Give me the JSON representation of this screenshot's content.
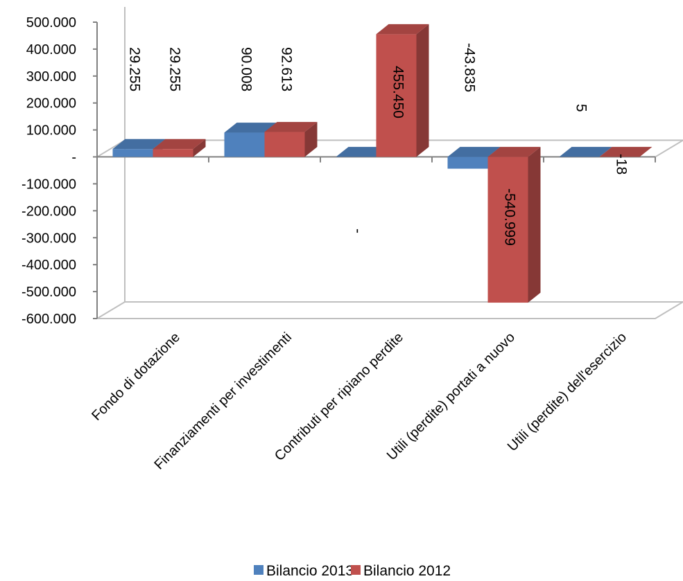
{
  "chart_data": {
    "type": "bar",
    "categories": [
      "Fondo di dotazione",
      "Finanziamenti per investimenti",
      "Contributi per ripiano perdite",
      "Utili (perdite) portati a nuovo",
      "Utili (perdite) dell'esercizio"
    ],
    "series": [
      {
        "name": "Bilancio 2013",
        "values": [
          29255,
          90008,
          0,
          -43835,
          5
        ],
        "labels": [
          "29.255",
          "90.008",
          "-",
          "-43.835",
          "5"
        ],
        "color": "#4F81BD"
      },
      {
        "name": "Bilancio 2012",
        "values": [
          29255,
          92613,
          455450,
          -540999,
          -18
        ],
        "labels": [
          "29.255",
          "92.613",
          "455.450",
          "-540.999",
          "-18"
        ],
        "color": "#C0504D"
      }
    ],
    "ylim": [
      -600000,
      500000
    ],
    "yticks": [
      500000,
      400000,
      300000,
      200000,
      100000,
      0,
      -100000,
      -200000,
      -300000,
      -400000,
      -500000,
      -600000
    ],
    "ytick_labels": [
      "500.000",
      "400.000",
      "300.000",
      "200.000",
      "100.000",
      "-",
      "-100.000",
      "-200.000",
      "-300.000",
      "-400.000",
      "-500.000",
      "-600.000"
    ],
    "legend_position": "bottom",
    "grid": false,
    "style": "3d-clustered-column"
  }
}
